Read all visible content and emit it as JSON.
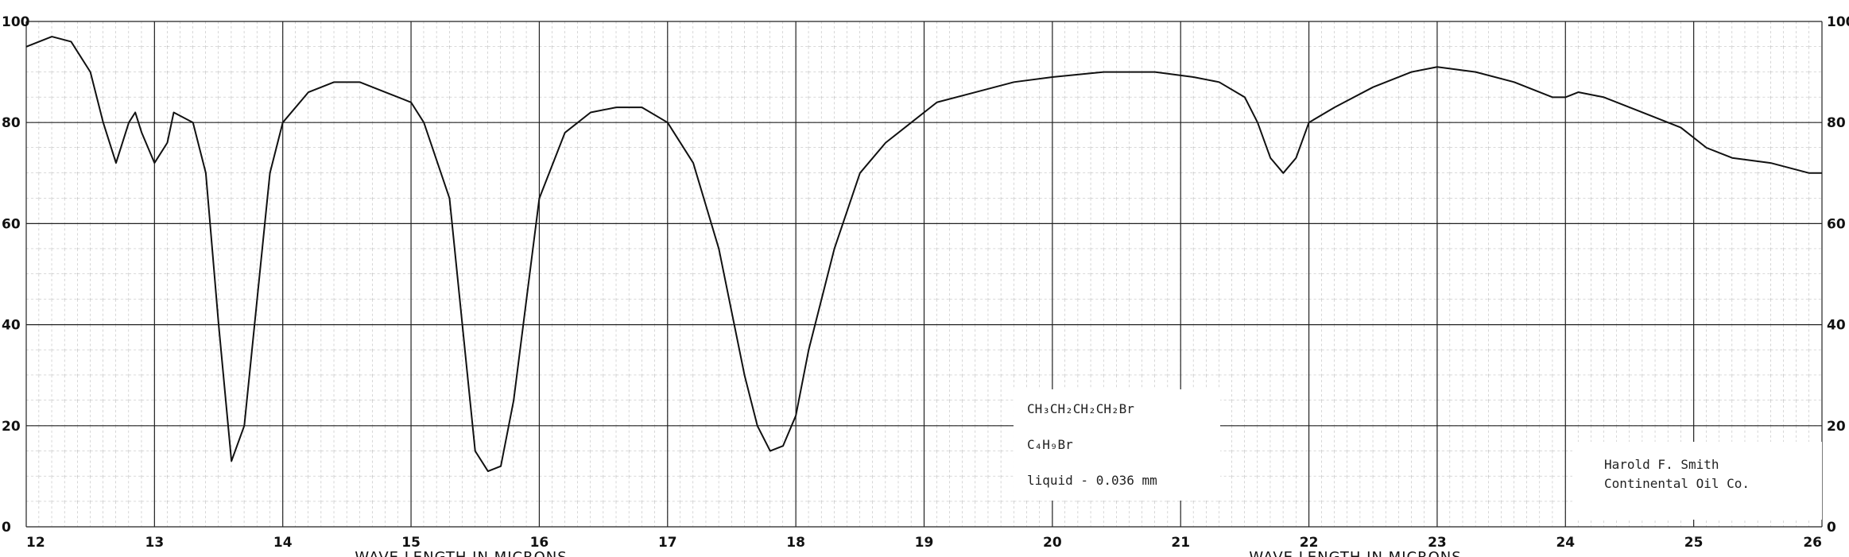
{
  "chart_data": {
    "type": "line",
    "xlabel": "WAVE LENGTH IN MICRONS",
    "xlabel_right": "WAVE LENGTH IN MICRONS",
    "annotations": [
      "CH₃CH₂CH₂CH₂Br",
      "C₄H₉Br",
      "liquid - 0.036 mm",
      "Harold F. Smith",
      "Continental Oil Co."
    ],
    "xlim": [
      12,
      26
    ],
    "xticks": [
      12,
      13,
      14,
      15,
      16,
      17,
      18,
      19,
      20,
      21,
      22,
      23,
      24,
      25,
      26
    ],
    "ylim": [
      0,
      100
    ],
    "yticks": [
      0,
      20,
      40,
      60,
      80,
      100
    ],
    "grid": true,
    "color": "#111111",
    "x": [
      12.0,
      12.2,
      12.35,
      12.5,
      12.6,
      12.7,
      12.8,
      12.85,
      12.9,
      13.0,
      13.1,
      13.15,
      13.3,
      13.4,
      13.5,
      13.6,
      13.7,
      13.8,
      13.9,
      14.0,
      14.2,
      14.4,
      14.6,
      14.8,
      15.0,
      15.1,
      15.3,
      15.4,
      15.5,
      15.6,
      15.7,
      15.8,
      15.9,
      16.0,
      16.2,
      16.4,
      16.6,
      16.8,
      17.0,
      17.2,
      17.4,
      17.6,
      17.7,
      17.8,
      17.9,
      18.0,
      18.1,
      18.3,
      18.5,
      18.7,
      18.9,
      19.1,
      19.4,
      19.7,
      20.0,
      20.4,
      20.8,
      21.1,
      21.3,
      21.5,
      21.6,
      21.7,
      21.8,
      21.9,
      22.0,
      22.2,
      22.5,
      22.8,
      23.0,
      23.3,
      23.6,
      23.9,
      24.0,
      24.1,
      24.3,
      24.6,
      24.9,
      25.1,
      25.3,
      25.6,
      25.9,
      26.0
    ],
    "values": [
      95,
      97,
      96,
      90,
      80,
      72,
      80,
      82,
      78,
      72,
      76,
      82,
      80,
      70,
      40,
      13,
      20,
      45,
      70,
      80,
      86,
      88,
      88,
      86,
      84,
      80,
      65,
      40,
      15,
      11,
      12,
      25,
      45,
      65,
      78,
      82,
      83,
      83,
      80,
      72,
      55,
      30,
      20,
      15,
      16,
      22,
      35,
      55,
      70,
      76,
      80,
      84,
      86,
      88,
      89,
      90,
      90,
      89,
      88,
      85,
      80,
      73,
      70,
      73,
      80,
      83,
      87,
      90,
      91,
      90,
      88,
      85,
      85,
      86,
      85,
      82,
      79,
      75,
      73,
      72,
      70,
      70
    ]
  }
}
